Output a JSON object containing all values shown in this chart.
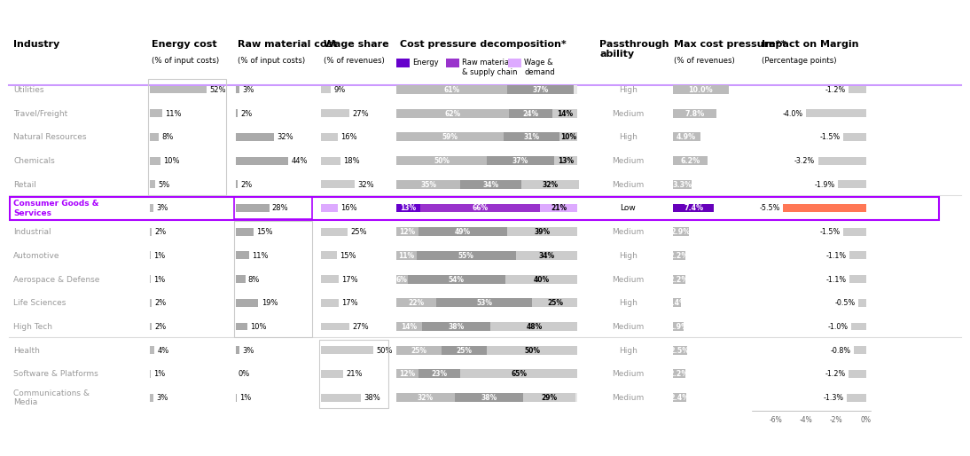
{
  "industries": [
    "Utilities",
    "Travel/Freight",
    "Natural Resources",
    "Chemicals",
    "Retail",
    "Consumer Goods &\nServices",
    "Industrial",
    "Automotive",
    "Aerospace & Defense",
    "Life Sciences",
    "High Tech",
    "Health",
    "Software & Platforms",
    "Communications &\nMedia"
  ],
  "energy_cost": [
    52,
    11,
    8,
    10,
    5,
    3,
    2,
    1,
    1,
    2,
    2,
    4,
    1,
    3
  ],
  "raw_material_cost": [
    3,
    2,
    32,
    44,
    2,
    28,
    15,
    11,
    8,
    19,
    10,
    3,
    0,
    1
  ],
  "wage_share": [
    9,
    27,
    16,
    18,
    32,
    16,
    25,
    15,
    17,
    17,
    27,
    50,
    21,
    38
  ],
  "cost_decomp_energy": [
    61,
    62,
    59,
    50,
    35,
    13,
    12,
    11,
    6,
    22,
    14,
    25,
    12,
    32
  ],
  "cost_decomp_raw": [
    37,
    24,
    31,
    37,
    34,
    66,
    49,
    55,
    54,
    53,
    38,
    25,
    23,
    38
  ],
  "cost_decomp_wage": [
    0,
    14,
    10,
    13,
    32,
    21,
    39,
    34,
    40,
    25,
    48,
    50,
    65,
    29
  ],
  "passthrough": [
    "High",
    "Medium",
    "High",
    "Medium",
    "Medium",
    "Low",
    "Medium",
    "High",
    "Medium",
    "High",
    "Medium",
    "High",
    "Medium",
    "Medium"
  ],
  "max_cost_pressure": [
    10.0,
    7.8,
    4.9,
    6.2,
    3.3,
    7.4,
    2.9,
    2.2,
    2.2,
    1.4,
    1.9,
    2.5,
    2.2,
    2.4
  ],
  "impact_on_margin": [
    -1.2,
    -4.0,
    -1.5,
    -3.2,
    -1.9,
    -5.5,
    -1.5,
    -1.1,
    -1.1,
    -0.5,
    -1.0,
    -0.8,
    -1.2,
    -1.3
  ],
  "highlighted_row": 5,
  "color_decomp_energy": "#6600cc",
  "color_decomp_raw": "#9933cc",
  "color_decomp_wage": "#ddaaff",
  "color_highlight_border": "#aa00ff",
  "color_max_pressure_normal": "#bbbbbb",
  "color_max_pressure_highlight": "#6600bb",
  "color_impact_normal": "#cccccc",
  "color_impact_highlight": "#ff7755",
  "color_passthrough_text": "#999999",
  "color_industry_normal": "#999999",
  "color_industry_highlight": "#aa00ff",
  "color_header_line": "#cc99ff",
  "fig_width": 10.8,
  "fig_height": 5.0,
  "dpi": 100
}
